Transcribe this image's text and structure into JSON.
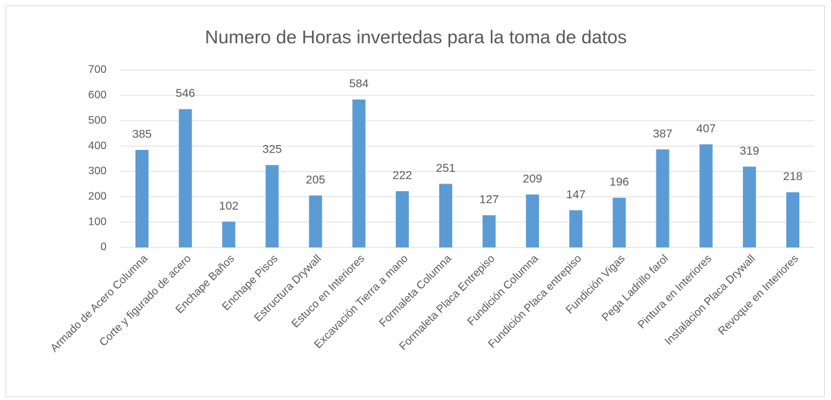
{
  "chart_data": {
    "type": "bar",
    "title": "Numero de Horas invertedas para la toma de datos",
    "categories": [
      "Armado de Acero Columna",
      "Corte y figurado de acero",
      "Enchape Baños",
      "Enchape Pisos",
      "Estructura Drywall",
      "Estuco en Interiores",
      "Excavación Tierra a mano",
      "Formaleta Columna",
      "Formaleta Placa Entrepiso",
      "Fundición Columna",
      "Fundición Placa entrepiso",
      "Fundición Vigas",
      "Pega Ladrillo farol",
      "Pintura en Interiores",
      "Instalacion Placa Drywall",
      "Revoque en Interiores"
    ],
    "values": [
      385,
      546,
      102,
      325,
      205,
      584,
      222,
      251,
      127,
      209,
      147,
      196,
      387,
      407,
      319,
      218
    ],
    "color": "#5b9bd5",
    "ylim": [
      0,
      700
    ],
    "yticks": [
      0,
      100,
      200,
      300,
      400,
      500,
      600,
      700
    ],
    "grid": true
  }
}
